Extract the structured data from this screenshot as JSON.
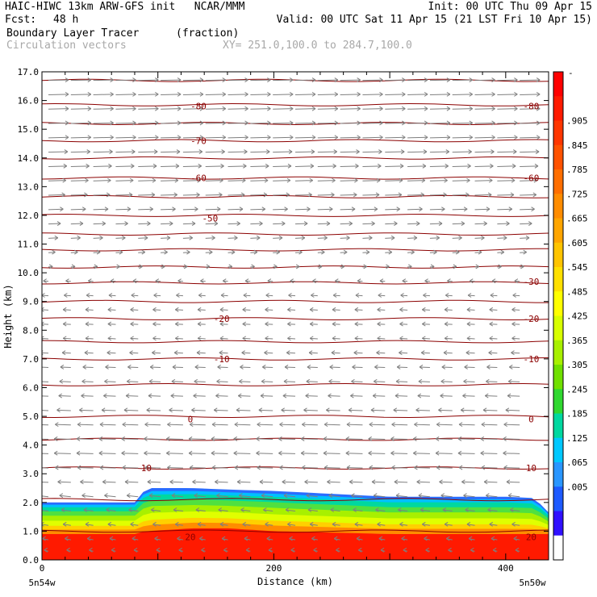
{
  "header": {
    "model_line": "HAIC-HIWC 13km ARW-GFS init   NCAR/MMM",
    "init_line": "Init: 00 UTC Thu 09 Apr 15",
    "fcst_label": "Fcst:",
    "fcst_value": "48 h",
    "valid_line": "Valid: 00 UTC Sat 11 Apr 15 (21 LST Fri 10 Apr 15)",
    "field_name": "Boundary Layer Tracer",
    "field_unit": "(fraction)",
    "vectors_label": "Circulation vectors",
    "xsect_line": "XY= 251.0,100.0 to 284.7,100.0"
  },
  "colors": {
    "contour": "#8b0000",
    "vector": "#7f7f7f",
    "axis": "#000000"
  },
  "chart_data": {
    "type": "heatmap",
    "xlabel": "Distance (km)",
    "ylabel": "Height (km)",
    "xlim": [
      0,
      437
    ],
    "ylim": [
      0,
      17
    ],
    "x_ticks": [
      {
        "value": 0,
        "label": "0"
      },
      {
        "value": 200,
        "label": "200"
      },
      {
        "value": 400,
        "label": "400"
      }
    ],
    "x_end_labels": {
      "left": "5n54w",
      "right": "5n50w"
    },
    "y_ticks": [
      "0.0",
      "1.0",
      "2.0",
      "3.0",
      "4.0",
      "5.0",
      "6.0",
      "7.0",
      "8.0",
      "9.0",
      "10.0",
      "11.0",
      "12.0",
      "13.0",
      "14.0",
      "15.0",
      "16.0",
      "17.0"
    ],
    "colorbar": {
      "top_label": "-",
      "labels": [
        ".905",
        ".845",
        ".785",
        ".725",
        ".665",
        ".605",
        ".545",
        ".485",
        ".425",
        ".365",
        ".305",
        ".245",
        ".185",
        ".125",
        ".065",
        ".005"
      ],
      "colors": [
        "#ff0000",
        "#ff1a00",
        "#ff3600",
        "#ff5200",
        "#ff6e00",
        "#ff8c00",
        "#ffa500",
        "#ffc400",
        "#ffe000",
        "#ffff00",
        "#d8ff00",
        "#a8f000",
        "#70e000",
        "#30d830",
        "#00d8a0",
        "#00c8ff",
        "#2a96ff",
        "#1e5aff",
        "#3010ff",
        "#ffffff"
      ]
    },
    "tracer_layer": {
      "x": [
        0,
        80,
        90,
        130,
        160,
        200,
        250,
        300,
        350,
        400,
        425,
        437
      ],
      "top_km": [
        2.0,
        2.0,
        2.5,
        2.5,
        2.45,
        2.4,
        2.3,
        2.2,
        2.2,
        2.2,
        2.15,
        1.65
      ],
      "core_top_km": [
        0.9,
        0.9,
        1.0,
        1.1,
        1.1,
        1.0,
        0.95,
        0.9,
        0.9,
        0.9,
        0.9,
        0.9
      ]
    },
    "contour_labels": [
      {
        "value": "-80",
        "x": 135,
        "y_km": 15.8
      },
      {
        "value": "-80",
        "x": 422,
        "y_km": 15.8
      },
      {
        "value": "-70",
        "x": 135,
        "y_km": 14.6
      },
      {
        "value": "-60",
        "x": 135,
        "y_km": 13.3
      },
      {
        "value": "-60",
        "x": 422,
        "y_km": 13.3
      },
      {
        "value": "-50",
        "x": 145,
        "y_km": 11.9
      },
      {
        "value": "-30",
        "x": 422,
        "y_km": 9.7
      },
      {
        "value": "-20",
        "x": 155,
        "y_km": 8.4
      },
      {
        "value": "-20",
        "x": 422,
        "y_km": 8.4
      },
      {
        "value": "-10",
        "x": 155,
        "y_km": 7.0
      },
      {
        "value": "-10",
        "x": 422,
        "y_km": 7.0
      },
      {
        "value": "0",
        "x": 128,
        "y_km": 4.9
      },
      {
        "value": "0",
        "x": 422,
        "y_km": 4.9
      },
      {
        "value": "10",
        "x": 90,
        "y_km": 3.2
      },
      {
        "value": "10",
        "x": 422,
        "y_km": 3.2
      },
      {
        "value": "20",
        "x": 128,
        "y_km": 0.8
      },
      {
        "value": "20",
        "x": 422,
        "y_km": 0.8
      }
    ],
    "contour_levels_km": [
      16.7,
      15.85,
      15.2,
      14.6,
      14.0,
      13.3,
      12.65,
      12.0,
      11.35,
      10.8,
      10.2,
      9.65,
      9.0,
      8.4,
      7.6,
      7.0,
      6.1,
      5.0,
      4.2,
      3.2,
      2.1,
      1.0
    ],
    "wind_vectors_rows_km": [
      16.7,
      16.2,
      15.7,
      15.2,
      14.7,
      14.2,
      13.7,
      13.2,
      12.7,
      12.2,
      11.7,
      11.2,
      10.7,
      10.2,
      9.7,
      9.2,
      8.7,
      8.2,
      7.7,
      7.2,
      6.7,
      6.2,
      5.7,
      5.2,
      4.7,
      4.2,
      3.7,
      3.2,
      2.7,
      2.2,
      1.7,
      1.2,
      0.7,
      0.3
    ],
    "wind_u_by_row": [
      1.0,
      1.0,
      1.0,
      1.0,
      1.0,
      0.95,
      0.9,
      0.85,
      0.8,
      0.7,
      0.55,
      0.4,
      0.25,
      0.1,
      -0.15,
      -0.25,
      -0.3,
      -0.3,
      -0.3,
      -0.35,
      -0.45,
      -0.5,
      -0.55,
      -0.65,
      -0.75,
      -0.8,
      -0.8,
      -0.75,
      -0.6,
      -0.5,
      -0.4,
      -0.3,
      -0.2,
      -0.1
    ]
  }
}
